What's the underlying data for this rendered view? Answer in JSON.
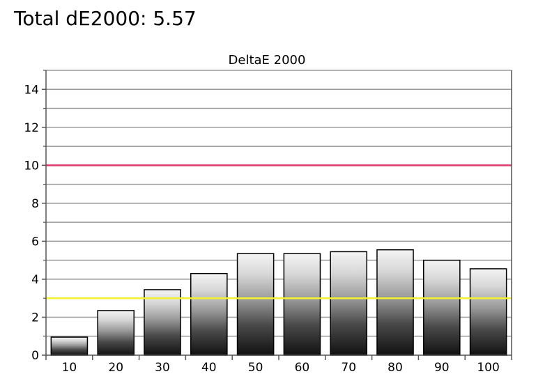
{
  "headline": "Total dE2000: 5.57",
  "chart_data": {
    "type": "bar",
    "title": "DeltaE 2000",
    "xlabel": "",
    "ylabel": "",
    "categories": [
      "10",
      "20",
      "30",
      "40",
      "50",
      "60",
      "70",
      "80",
      "90",
      "100"
    ],
    "values": [
      0.95,
      2.35,
      3.45,
      4.3,
      5.35,
      5.35,
      5.45,
      5.55,
      5.0,
      4.55
    ],
    "ylim": [
      0,
      15
    ],
    "yticks": [
      0,
      2,
      4,
      6,
      8,
      10,
      12,
      14
    ],
    "yticks_minor": [
      1,
      3,
      5,
      7,
      9,
      11,
      13,
      15
    ],
    "grid": true,
    "reference_lines": [
      {
        "value": 10,
        "color": "#e0386a"
      },
      {
        "value": 3,
        "color": "#f2f230"
      }
    ],
    "bar_fill": "grayscale-gradient",
    "colors": {
      "grid": "#9a9a9a",
      "axis": "#555555",
      "bar_outline": "#000000"
    }
  }
}
